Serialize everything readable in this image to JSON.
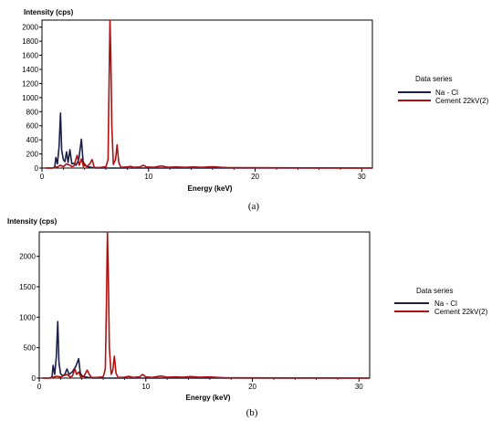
{
  "chart_data": [
    {
      "type": "line",
      "panel_label": "(a)",
      "ylabel": "Intensity (cps)",
      "xlabel": "Energy (keV)",
      "xlim": [
        0,
        31
      ],
      "ylim": [
        0,
        2100
      ],
      "x_ticks": [
        0,
        10,
        20,
        30
      ],
      "y_ticks": [
        0,
        200,
        400,
        600,
        800,
        1000,
        1200,
        1400,
        1600,
        1800,
        2000
      ],
      "legend_title": "Data series",
      "legend_position": "right",
      "series": [
        {
          "name": "Na - Cl",
          "color": "#1a1f4a",
          "points": [
            [
              0.3,
              0
            ],
            [
              1.0,
              0
            ],
            [
              1.2,
              20
            ],
            [
              1.3,
              150
            ],
            [
              1.45,
              60
            ],
            [
              1.6,
              300
            ],
            [
              1.74,
              780
            ],
            [
              1.85,
              250
            ],
            [
              2.0,
              120
            ],
            [
              2.15,
              90
            ],
            [
              2.3,
              230
            ],
            [
              2.45,
              80
            ],
            [
              2.62,
              260
            ],
            [
              2.8,
              60
            ],
            [
              3.0,
              70
            ],
            [
              3.2,
              40
            ],
            [
              3.45,
              120
            ],
            [
              3.7,
              410
            ],
            [
              3.85,
              100
            ],
            [
              4.0,
              40
            ],
            [
              4.3,
              20
            ],
            [
              4.6,
              10
            ],
            [
              5.0,
              0
            ],
            [
              31,
              0
            ]
          ]
        },
        {
          "name": "Cement 22kV(2)",
          "color": "#b01010",
          "points": [
            [
              0.3,
              0
            ],
            [
              1.0,
              0
            ],
            [
              1.25,
              10
            ],
            [
              1.5,
              20
            ],
            [
              1.7,
              40
            ],
            [
              2.0,
              20
            ],
            [
              2.3,
              60
            ],
            [
              2.6,
              40
            ],
            [
              2.8,
              20
            ],
            [
              3.0,
              30
            ],
            [
              3.3,
              180
            ],
            [
              3.5,
              40
            ],
            [
              3.7,
              130
            ],
            [
              3.9,
              20
            ],
            [
              4.0,
              60
            ],
            [
              4.2,
              20
            ],
            [
              4.5,
              60
            ],
            [
              4.7,
              120
            ],
            [
              4.9,
              10
            ],
            [
              5.2,
              5
            ],
            [
              5.6,
              10
            ],
            [
              6.0,
              20
            ],
            [
              6.2,
              120
            ],
            [
              6.3,
              1300
            ],
            [
              6.38,
              2100
            ],
            [
              6.46,
              1600
            ],
            [
              6.55,
              600
            ],
            [
              6.7,
              50
            ],
            [
              6.9,
              120
            ],
            [
              7.05,
              330
            ],
            [
              7.2,
              80
            ],
            [
              7.4,
              10
            ],
            [
              8.0,
              15
            ],
            [
              8.3,
              25
            ],
            [
              8.6,
              10
            ],
            [
              9.2,
              15
            ],
            [
              9.5,
              40
            ],
            [
              9.8,
              15
            ],
            [
              10.5,
              10
            ],
            [
              11.2,
              30
            ],
            [
              11.8,
              10
            ],
            [
              12.6,
              15
            ],
            [
              13.4,
              10
            ],
            [
              14.2,
              15
            ],
            [
              15.0,
              10
            ],
            [
              16.0,
              20
            ],
            [
              16.8,
              10
            ],
            [
              17.5,
              5
            ],
            [
              31,
              0
            ]
          ]
        }
      ]
    },
    {
      "type": "line",
      "panel_label": "(b)",
      "ylabel": "Intensity (cps)",
      "xlabel": "Energy (keV)",
      "xlim": [
        0,
        31
      ],
      "ylim": [
        0,
        2400
      ],
      "x_ticks": [
        0,
        10,
        20,
        30
      ],
      "y_ticks": [
        0,
        500,
        1000,
        1500,
        2000
      ],
      "legend_title": "Data series",
      "legend_position": "right",
      "series": [
        {
          "name": "Na - Cl",
          "color": "#1a1f4a",
          "points": [
            [
              0.3,
              0
            ],
            [
              1.0,
              0
            ],
            [
              1.2,
              20
            ],
            [
              1.3,
              210
            ],
            [
              1.45,
              60
            ],
            [
              1.6,
              350
            ],
            [
              1.74,
              930
            ],
            [
              1.85,
              250
            ],
            [
              2.0,
              70
            ],
            [
              2.2,
              40
            ],
            [
              2.4,
              60
            ],
            [
              2.6,
              150
            ],
            [
              2.8,
              60
            ],
            [
              3.1,
              100
            ],
            [
              3.45,
              200
            ],
            [
              3.7,
              320
            ],
            [
              3.85,
              80
            ],
            [
              4.0,
              40
            ],
            [
              4.3,
              20
            ],
            [
              4.6,
              10
            ],
            [
              5.0,
              0
            ],
            [
              31,
              0
            ]
          ]
        },
        {
          "name": "Cement 22kV(2)",
          "color": "#b01010",
          "points": [
            [
              0.3,
              0
            ],
            [
              1.0,
              0
            ],
            [
              1.25,
              10
            ],
            [
              1.6,
              30
            ],
            [
              2.0,
              20
            ],
            [
              2.3,
              40
            ],
            [
              2.6,
              60
            ],
            [
              2.9,
              20
            ],
            [
              3.1,
              30
            ],
            [
              3.35,
              150
            ],
            [
              3.5,
              60
            ],
            [
              3.7,
              100
            ],
            [
              3.9,
              20
            ],
            [
              4.2,
              30
            ],
            [
              4.5,
              130
            ],
            [
              4.7,
              60
            ],
            [
              4.9,
              10
            ],
            [
              5.4,
              10
            ],
            [
              6.0,
              20
            ],
            [
              6.2,
              150
            ],
            [
              6.3,
              1200
            ],
            [
              6.4,
              2400
            ],
            [
              6.48,
              1700
            ],
            [
              6.58,
              500
            ],
            [
              6.75,
              60
            ],
            [
              6.9,
              130
            ],
            [
              7.05,
              360
            ],
            [
              7.2,
              80
            ],
            [
              7.4,
              10
            ],
            [
              8.0,
              15
            ],
            [
              8.4,
              30
            ],
            [
              8.8,
              10
            ],
            [
              9.4,
              20
            ],
            [
              9.7,
              60
            ],
            [
              10.0,
              20
            ],
            [
              10.6,
              10
            ],
            [
              11.4,
              35
            ],
            [
              12.0,
              15
            ],
            [
              12.8,
              20
            ],
            [
              13.5,
              15
            ],
            [
              14.2,
              25
            ],
            [
              15.0,
              15
            ],
            [
              16.0,
              20
            ],
            [
              16.8,
              10
            ],
            [
              17.5,
              5
            ],
            [
              31,
              0
            ]
          ]
        }
      ]
    }
  ]
}
